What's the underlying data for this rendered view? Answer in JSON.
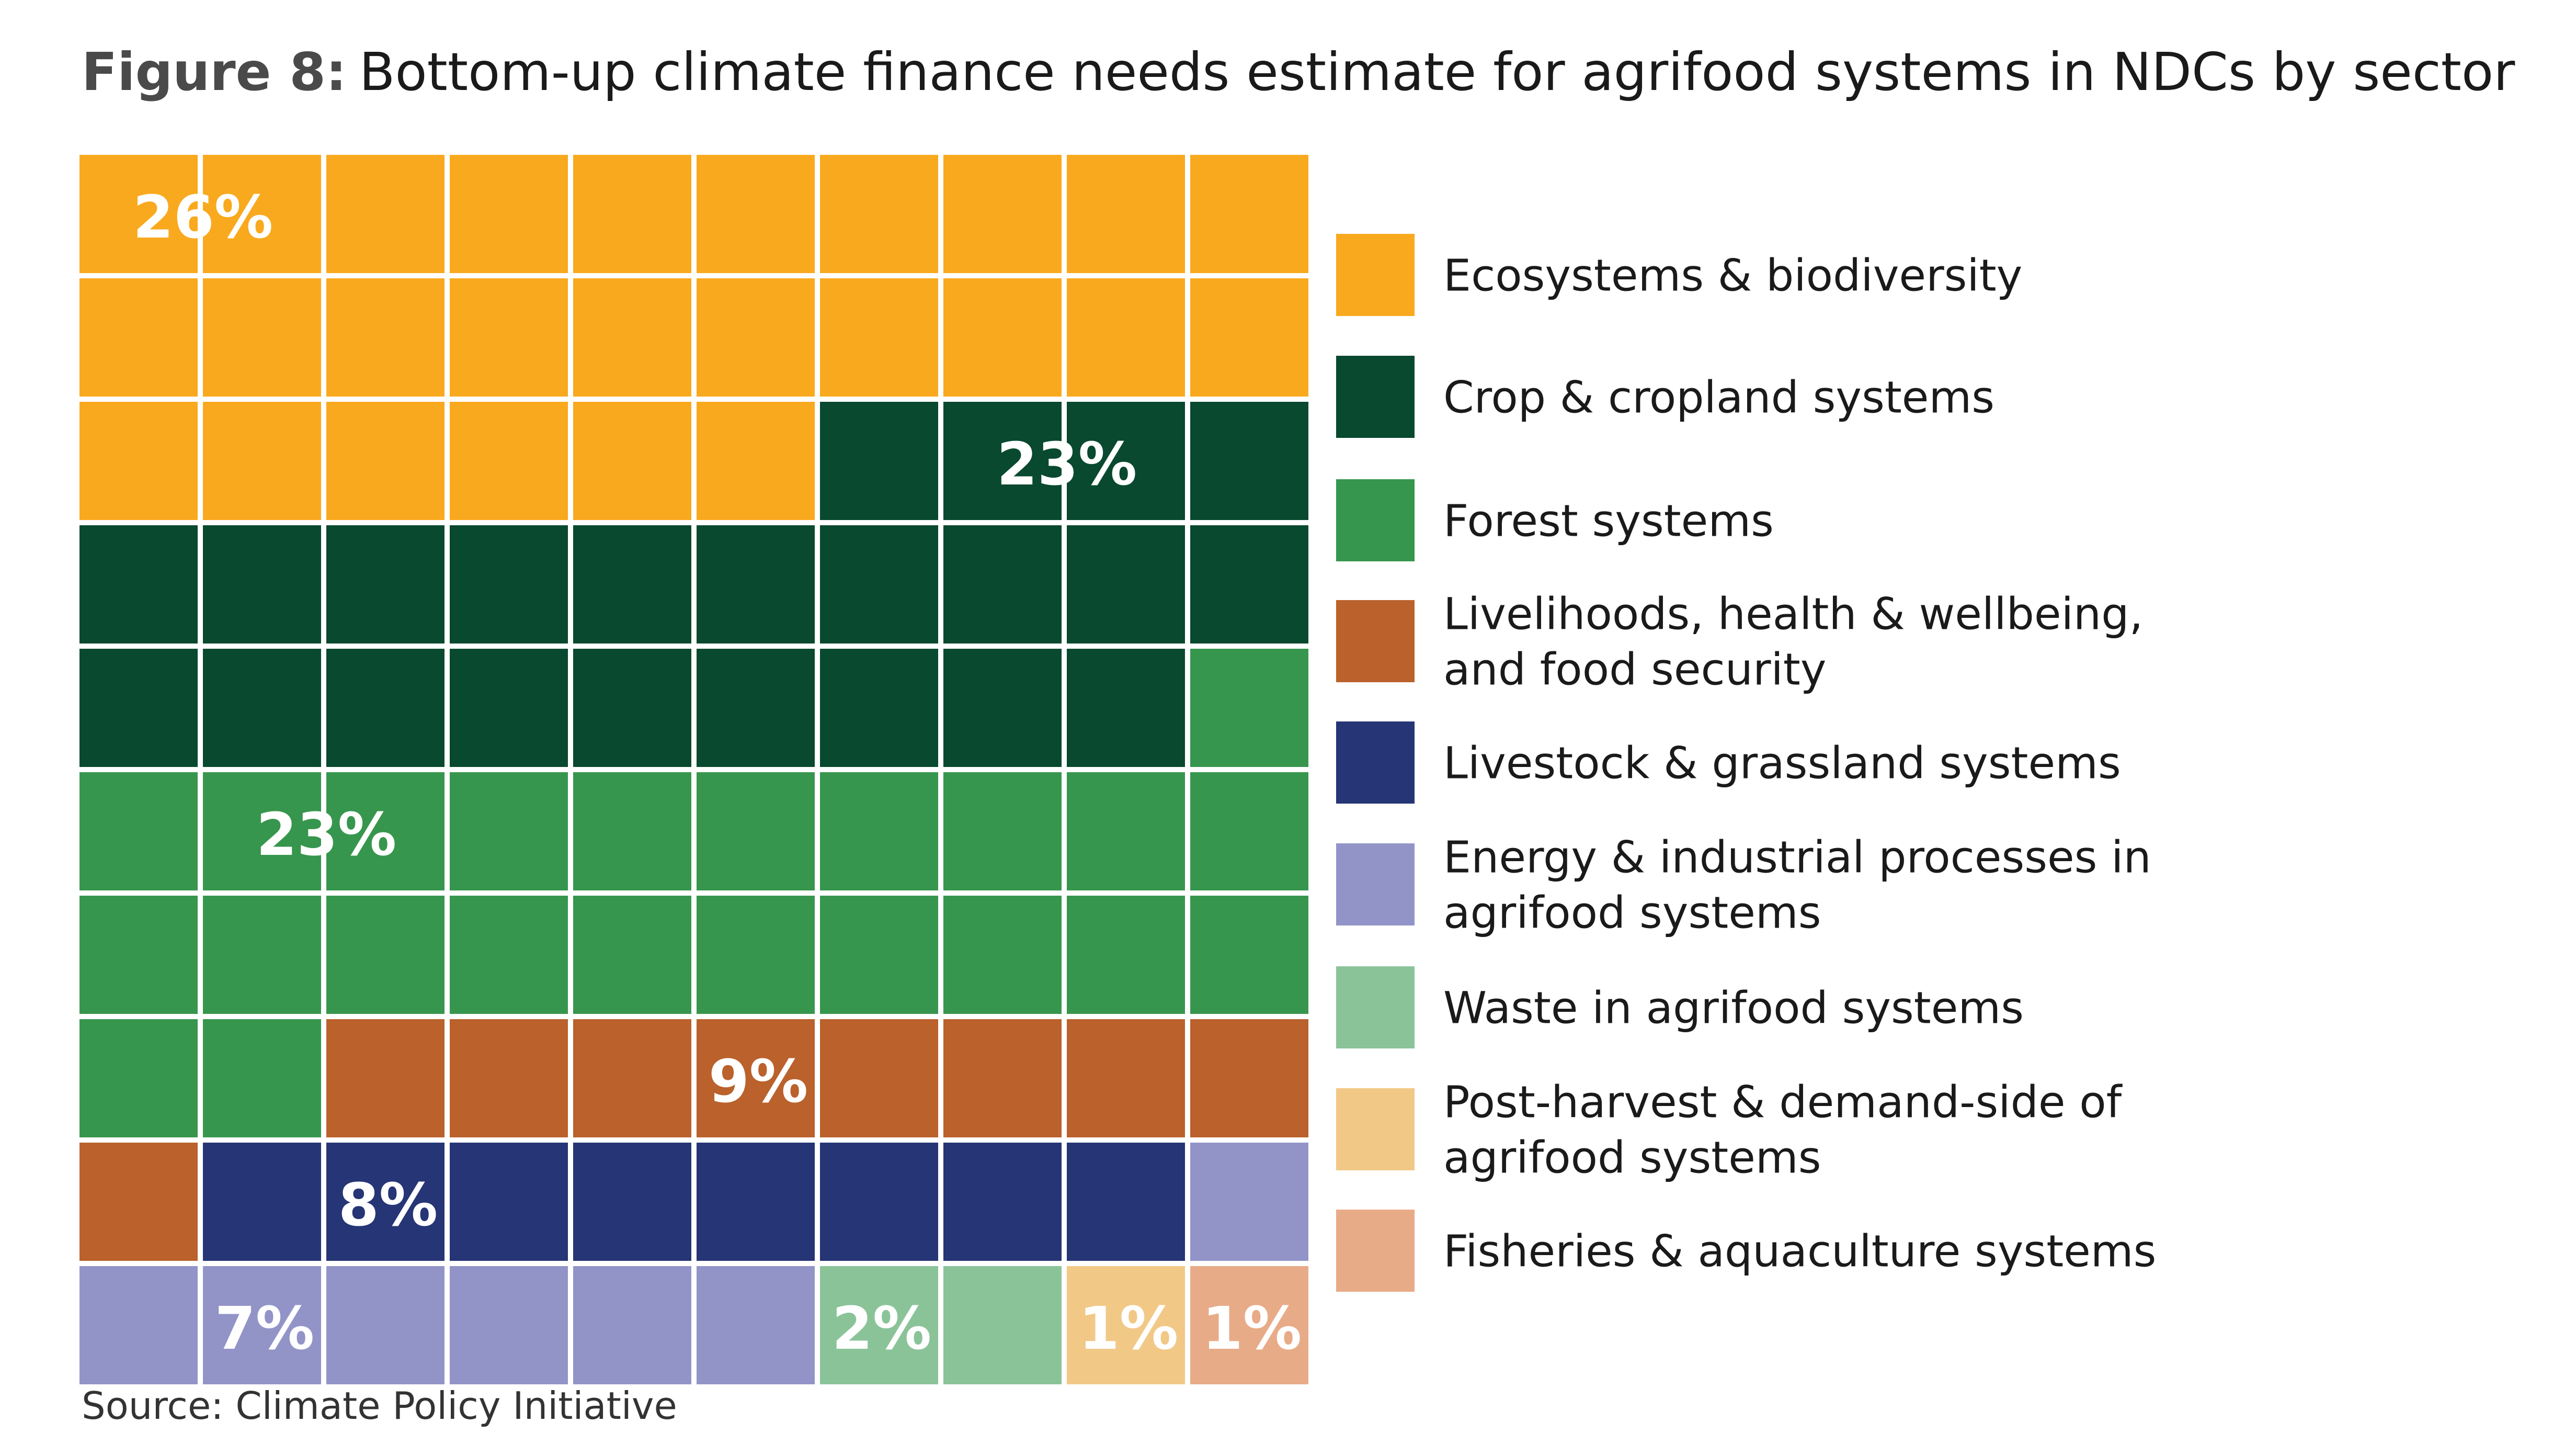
{
  "figure": {
    "label": "Figure 8:",
    "title": "Bottom-up climate finance needs estimate for agrifood systems in NDCs by sector",
    "source": "Source: Climate Policy Initiative"
  },
  "chart_data": {
    "type": "waffle",
    "grid": {
      "rows": 10,
      "cols": 10
    },
    "fill_order": "row-major from top-left",
    "legend_position": "right",
    "categories": [
      {
        "name": "Ecosystems & biodiversity",
        "label_lines": [
          "Ecosystems & biodiversity"
        ],
        "value_label": "26%",
        "cells": 26,
        "color": "#F9A91E",
        "value_label_color": "#ffffff"
      },
      {
        "name": "Crop & cropland systems",
        "label_lines": [
          "Crop & cropland systems"
        ],
        "value_label": "23%",
        "cells": 23,
        "color": "#08492F",
        "value_label_color": "#ffffff"
      },
      {
        "name": "Forest systems",
        "label_lines": [
          "Forest systems"
        ],
        "value_label": "23%",
        "cells": 23,
        "color": "#37964D",
        "value_label_color": "#ffffff"
      },
      {
        "name": "Livelihoods, health & wellbeing, and food security",
        "label_lines": [
          "Livelihoods, health & wellbeing,",
          "and food security"
        ],
        "value_label": "9%",
        "cells": 9,
        "color": "#BA612C",
        "value_label_color": "#ffffff"
      },
      {
        "name": "Livestock & grassland systems",
        "label_lines": [
          "Livestock & grassland systems"
        ],
        "value_label": "8%",
        "cells": 8,
        "color": "#253575",
        "value_label_color": "#ffffff"
      },
      {
        "name": "Energy & industrial processes in agrifood systems",
        "label_lines": [
          "Energy & industrial processes in",
          "agrifood systems"
        ],
        "value_label": "7%",
        "cells": 7,
        "color": "#9294C8",
        "value_label_color": "#ffffff"
      },
      {
        "name": "Waste in agrifood systems",
        "label_lines": [
          "Waste in agrifood systems"
        ],
        "value_label": "2%",
        "cells": 2,
        "color": "#8BC399",
        "value_label_color": "#ffffff"
      },
      {
        "name": "Post-harvest & demand-side of agrifood systems",
        "label_lines": [
          "Post-harvest & demand-side of",
          "agrifood systems"
        ],
        "value_label": "1%",
        "cells": 1,
        "color": "#F2C887",
        "value_label_color": "#ffffff"
      },
      {
        "name": "Fisheries & aquaculture systems",
        "label_lines": [
          "Fisheries & aquaculture systems"
        ],
        "value_label": "1%",
        "cells": 1,
        "color": "#E8AB88",
        "value_label_color": "#ffffff"
      }
    ]
  }
}
